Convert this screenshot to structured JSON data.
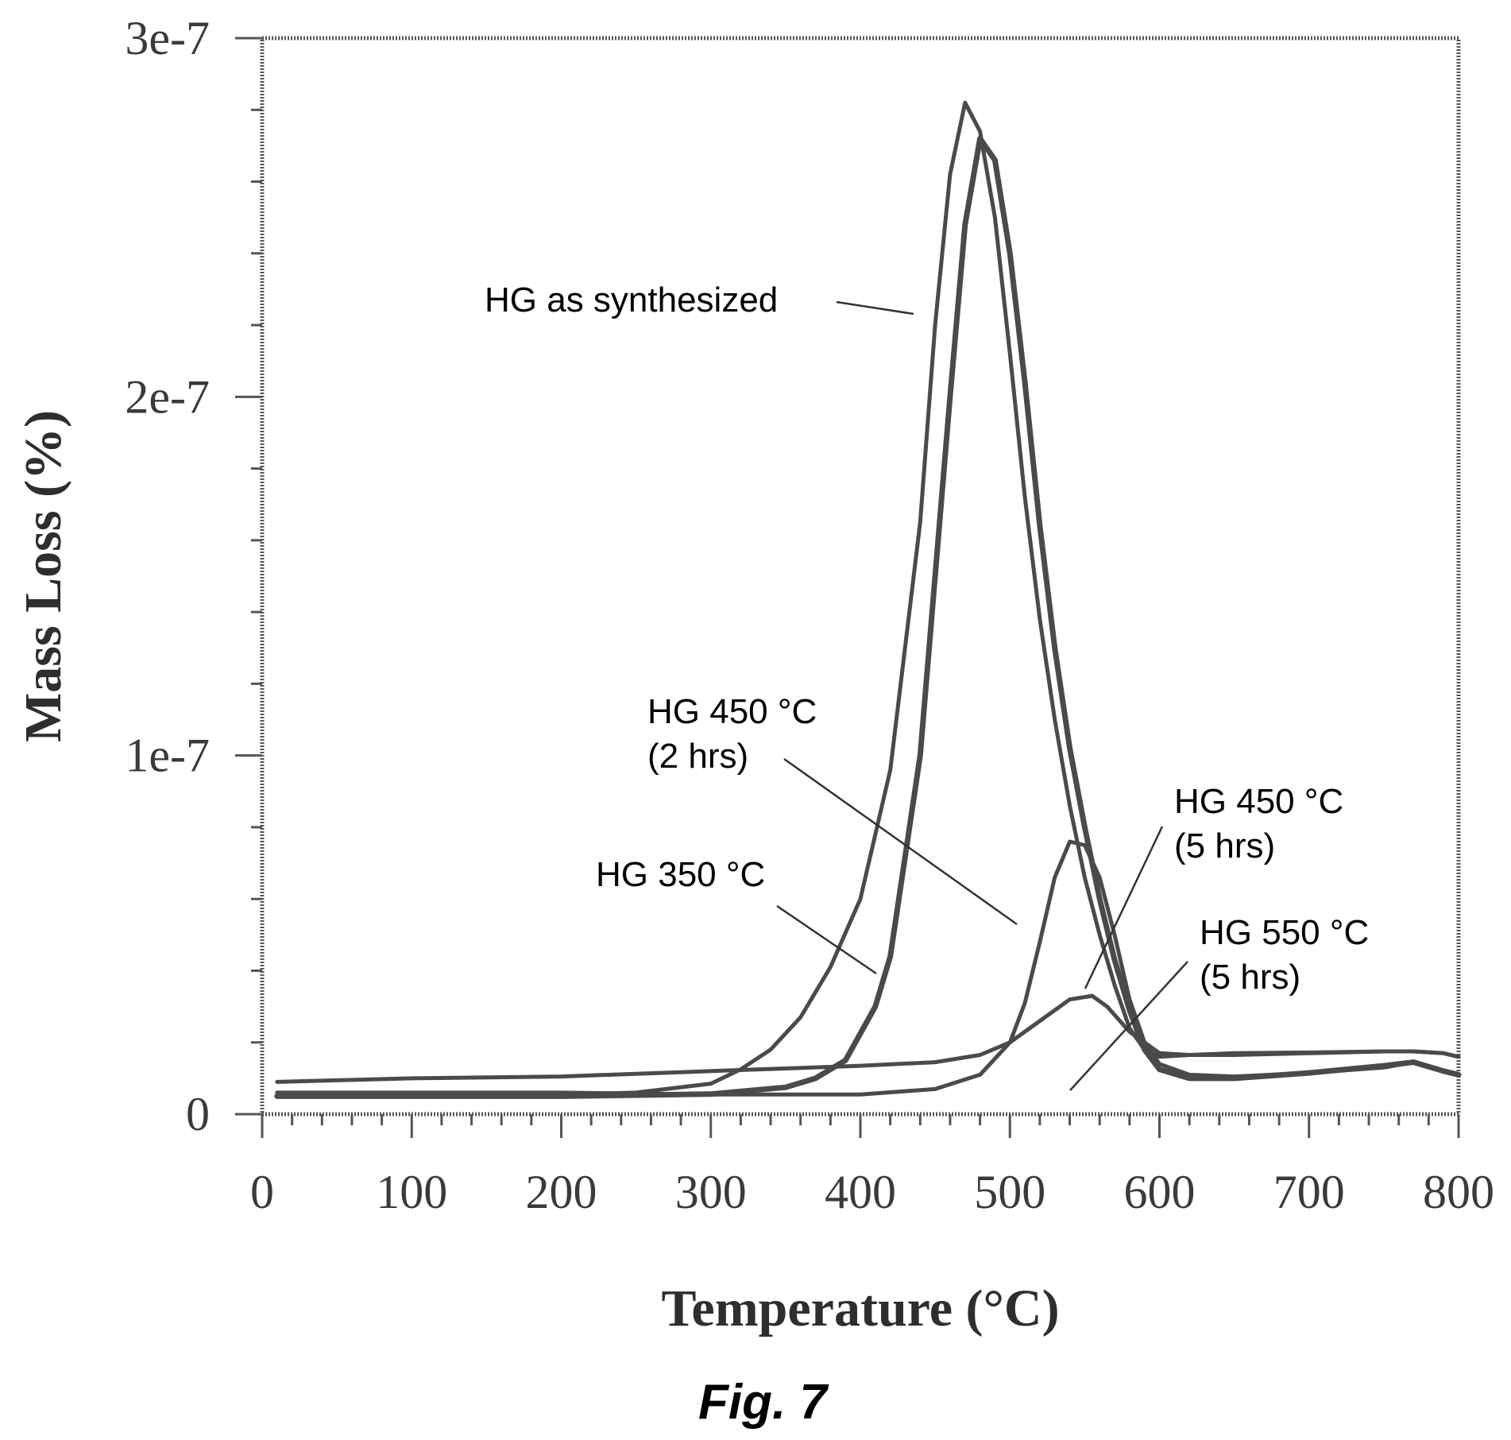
{
  "chart_data": {
    "type": "line",
    "title": "",
    "xlabel": "Temperature (°C)",
    "ylabel": "Mass Loss (%)",
    "xlim": [
      0,
      800
    ],
    "ylim": [
      0,
      3e-07
    ],
    "x_ticks": [
      0,
      100,
      200,
      300,
      400,
      500,
      600,
      700,
      800
    ],
    "x_tick_labels": [
      "0",
      "100",
      "200",
      "300",
      "400",
      "500",
      "600",
      "700",
      "800"
    ],
    "y_ticks": [
      0,
      1e-07,
      2e-07,
      3e-07
    ],
    "y_tick_labels": [
      "0",
      "1e-7",
      "2e-7",
      "3e-7"
    ],
    "grid": false,
    "legend": "none",
    "series": [
      {
        "name": "HG as synthesized",
        "x": [
          10,
          100,
          200,
          250,
          300,
          320,
          340,
          360,
          380,
          400,
          420,
          440,
          450,
          460,
          470,
          480,
          490,
          500,
          510,
          520,
          530,
          540,
          550,
          560,
          570,
          580,
          590,
          600,
          620,
          650,
          700,
          750,
          770,
          790,
          800
        ],
        "y": [
          5.2e-09,
          5.2e-09,
          5.5e-09,
          6e-09,
          8.5e-09,
          1.25e-08,
          1.8e-08,
          2.7e-08,
          4.1e-08,
          6e-08,
          9.6e-08,
          1.65e-07,
          2.2e-07,
          2.62e-07,
          2.82e-07,
          2.74e-07,
          2.5e-07,
          2.12e-07,
          1.72e-07,
          1.38e-07,
          1.1e-07,
          8.6e-08,
          6.6e-08,
          5e-08,
          3.6e-08,
          2.4e-08,
          1.8e-08,
          1.6e-08,
          1.65e-08,
          1.7e-08,
          1.72e-08,
          1.75e-08,
          1.75e-08,
          1.7e-08,
          1.6e-08
        ]
      },
      {
        "name": "HG 350 °C",
        "x": [
          10,
          100,
          200,
          300,
          350,
          370,
          390,
          410,
          420,
          440,
          460,
          470,
          480,
          490,
          500,
          510,
          520,
          530,
          540,
          550,
          560,
          570,
          580,
          590,
          600,
          620,
          650,
          700,
          750,
          770,
          790,
          800
        ],
        "y": [
          5e-09,
          5e-09,
          5e-09,
          5.6e-09,
          7.5e-09,
          1e-08,
          1.5e-08,
          3e-08,
          4.4e-08,
          1e-07,
          2e-07,
          2.48e-07,
          2.72e-07,
          2.66e-07,
          2.4e-07,
          2.04e-07,
          1.64e-07,
          1.3e-07,
          1.02e-07,
          8e-08,
          6e-08,
          4.3e-08,
          2.9e-08,
          1.8e-08,
          1.25e-08,
          1e-08,
          1e-08,
          1.15e-08,
          1.35e-08,
          1.45e-08,
          1.2e-08,
          1.1e-08
        ]
      },
      {
        "name": "HG 450 °C (2 hrs)",
        "x": [
          10,
          100,
          200,
          300,
          400,
          450,
          480,
          500,
          510,
          520,
          530,
          540,
          550,
          560,
          570,
          580,
          590,
          600,
          620,
          650,
          700,
          750,
          770,
          790,
          800
        ],
        "y": [
          6e-09,
          6e-09,
          6e-09,
          5.5e-09,
          5.5e-09,
          7e-09,
          1.1e-08,
          2e-08,
          3.1e-08,
          4.8e-08,
          6.6e-08,
          7.6e-08,
          7.5e-08,
          6.6e-08,
          5e-08,
          3.2e-08,
          2e-08,
          1.4e-08,
          1.1e-08,
          1.05e-08,
          1.15e-08,
          1.3e-08,
          1.45e-08,
          1.2e-08,
          1.1e-08
        ]
      },
      {
        "name": "HG 550 °C (5 hrs)",
        "x": [
          10,
          100,
          200,
          300,
          400,
          450,
          480,
          500,
          520,
          540,
          555,
          565,
          580,
          600,
          620,
          650,
          700,
          750,
          770,
          790,
          800
        ],
        "y": [
          9e-09,
          1e-08,
          1.05e-08,
          1.2e-08,
          1.35e-08,
          1.45e-08,
          1.65e-08,
          2e-08,
          2.6e-08,
          3.2e-08,
          3.3e-08,
          3e-08,
          2.3e-08,
          1.7e-08,
          1.65e-08,
          1.65e-08,
          1.7e-08,
          1.75e-08,
          1.75e-08,
          1.7e-08,
          1.6e-08
        ]
      }
    ],
    "annotations": [
      {
        "lines": [
          "HG as synthesized"
        ]
      },
      {
        "lines": [
          "HG 450 °C",
          "(2 hrs)"
        ]
      },
      {
        "lines": [
          "HG 450 °C",
          "(5 hrs)"
        ]
      },
      {
        "lines": [
          "HG 350 °C"
        ]
      },
      {
        "lines": [
          "HG 550 °C",
          "(5 hrs)"
        ]
      }
    ]
  },
  "caption": "Fig. 7"
}
